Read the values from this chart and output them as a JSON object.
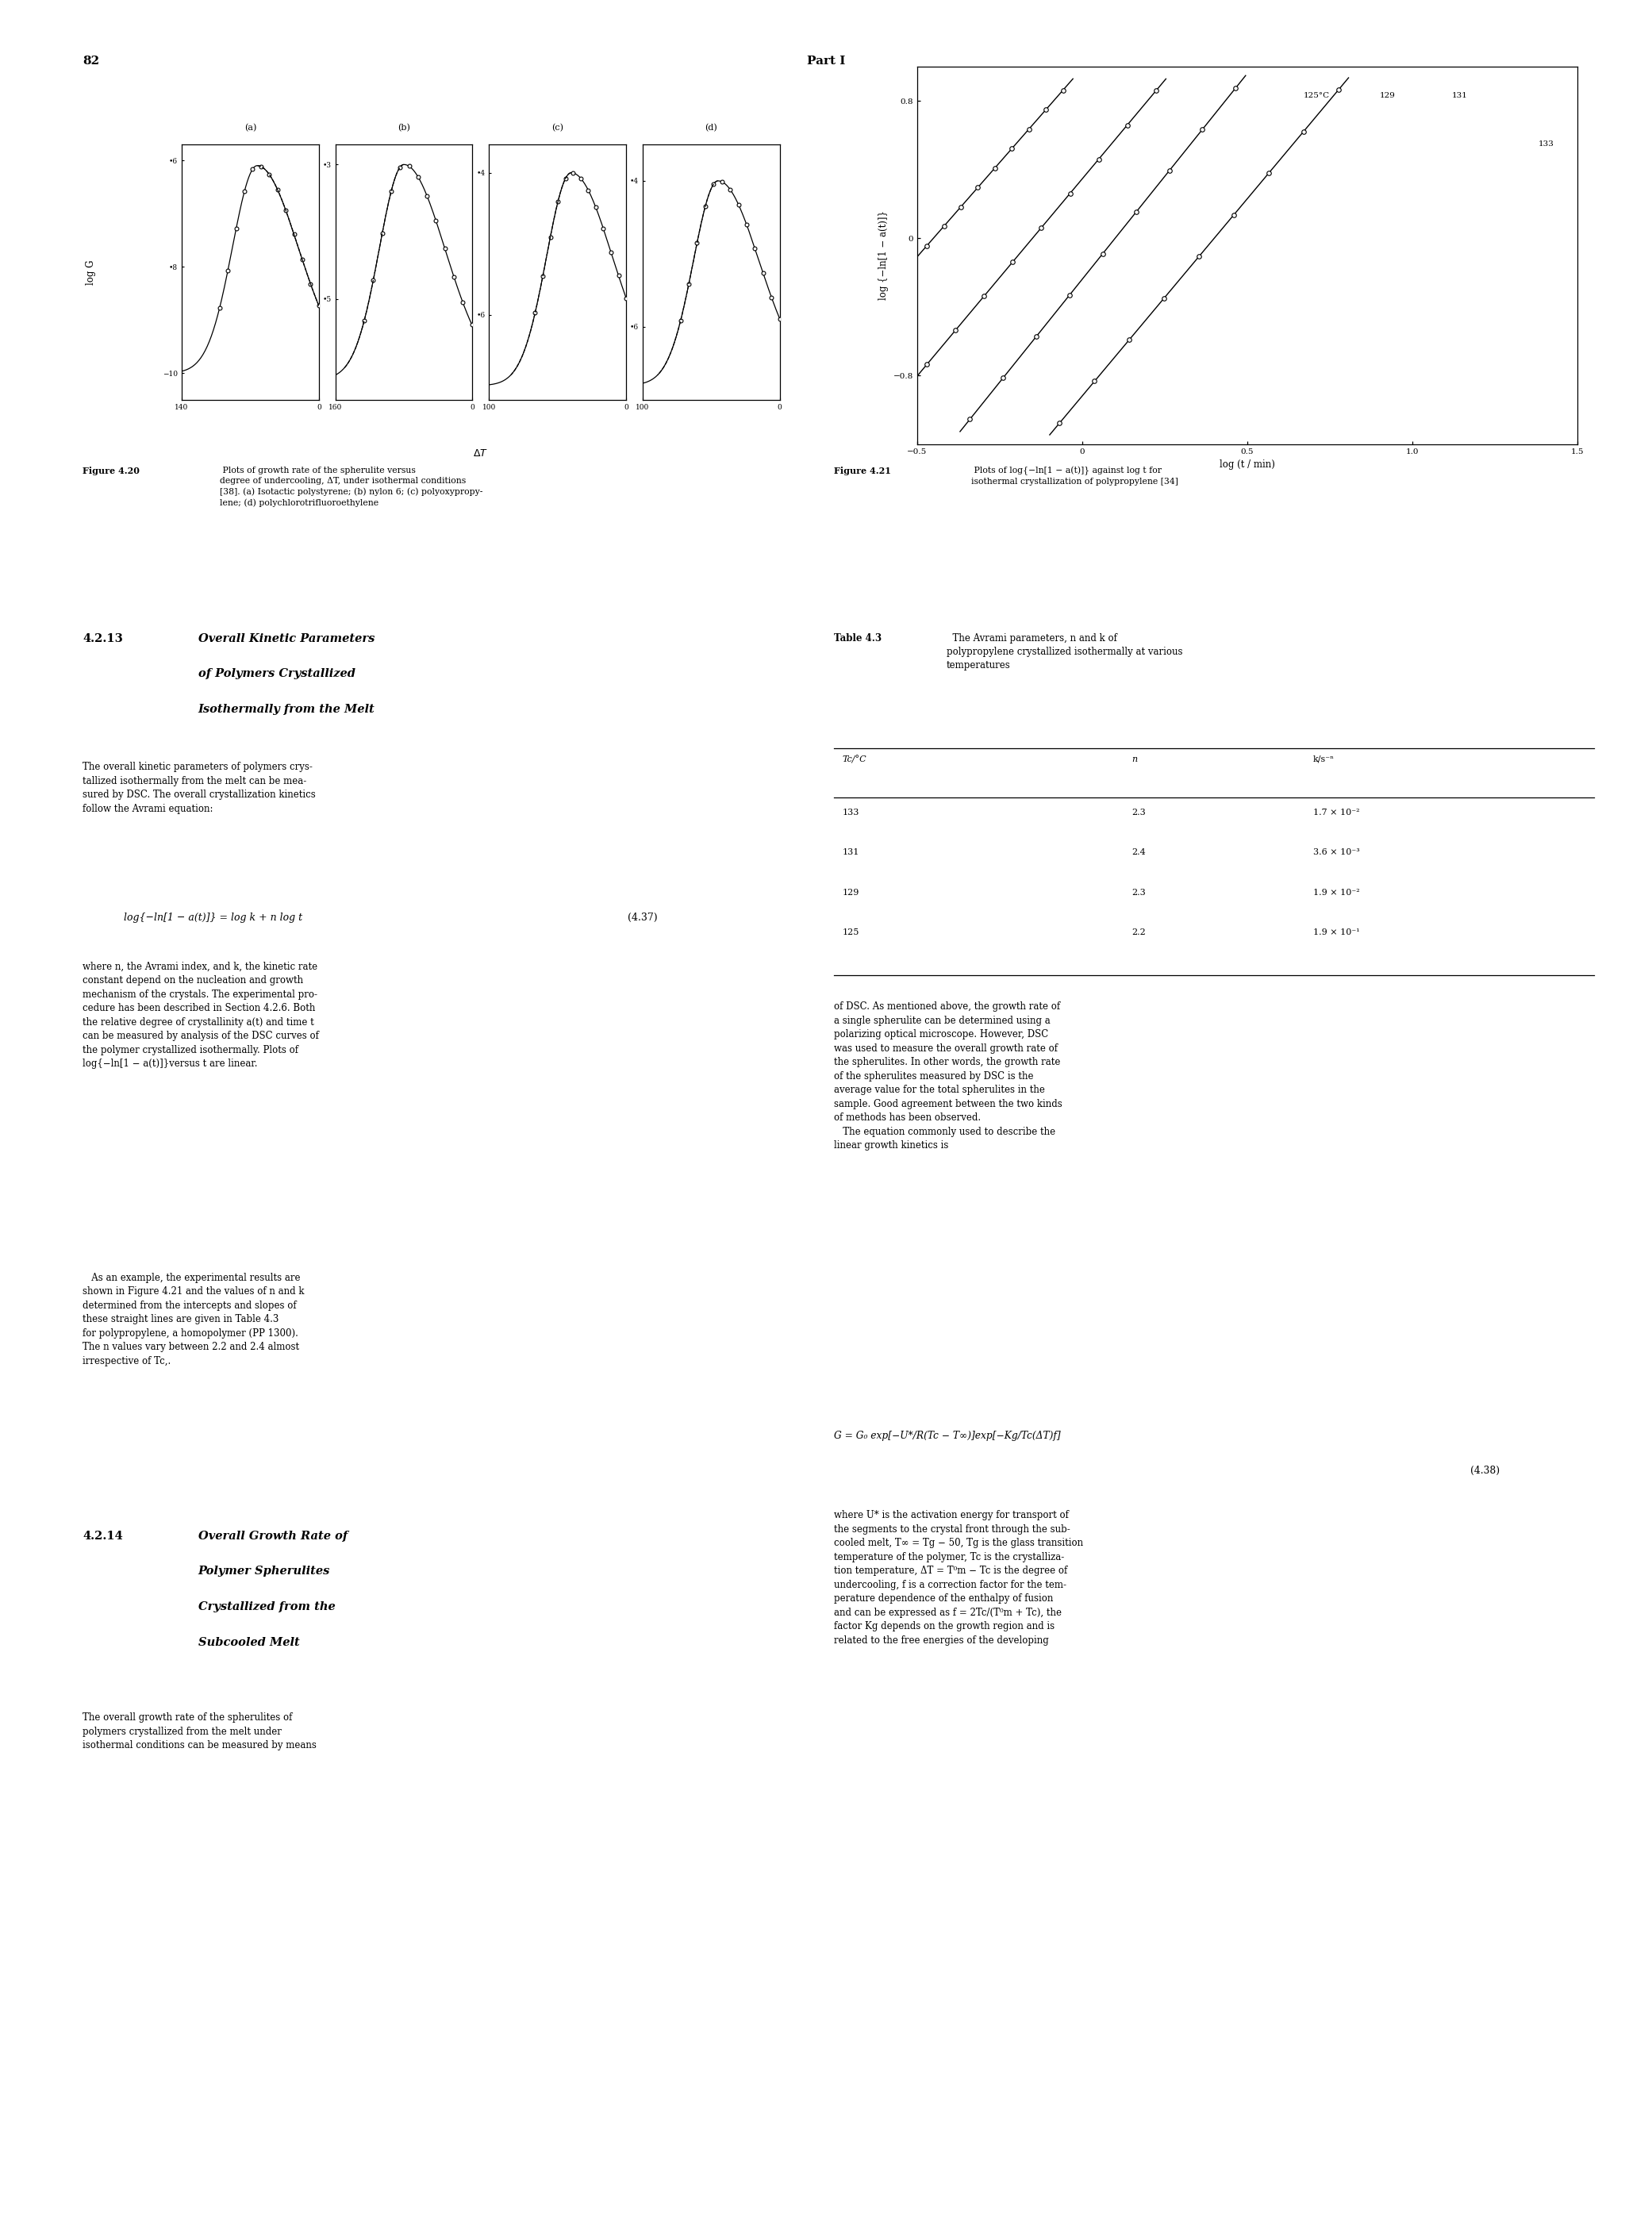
{
  "page_number": "82",
  "header_title": "Part I",
  "background_color": "#ffffff",
  "fig420_caption_bold": "Figure 4.20",
  "fig420_caption_text": "  Plots of growth rate of the spherulite versus\ndegree of undercooling, ΔT, under isothermal conditions\n[38]. (a) Isotactic polystyrene; (b) nylon 6; (c) polyoxypropy-\nylene; (d) polychlorotrifluoroethylene",
  "fig421_caption_bold": "Figure 4.21",
  "fig421_caption_text": "  Plots of log{−ln[1 − a(t)]} against log t for\nisothermal crystallization of polypropylene [34]",
  "subplot_a_ytick_labels": [
    "•6",
    "•8",
    "−10"
  ],
  "subplot_a_ytick_vals": [
    -6,
    -8,
    -10
  ],
  "subplot_a_xtick_labels": [
    "140",
    "0"
  ],
  "subplot_a_xtick_vals": [
    140,
    0
  ],
  "subplot_a_xlim": [
    140,
    0
  ],
  "subplot_a_ylim": [
    -10.5,
    -5.7
  ],
  "subplot_b_ytick_labels": [
    "•3",
    "•5"
  ],
  "subplot_b_ytick_vals": [
    -3,
    -5
  ],
  "subplot_b_xtick_labels": [
    "160",
    "0"
  ],
  "subplot_b_xtick_vals": [
    160,
    0
  ],
  "subplot_b_xlim": [
    160,
    0
  ],
  "subplot_b_ylim": [
    -6.5,
    -2.7
  ],
  "subplot_c_ytick_labels": [
    "•4",
    "•6"
  ],
  "subplot_c_ytick_vals": [
    -4,
    -6
  ],
  "subplot_c_xtick_labels": [
    "100",
    "0"
  ],
  "subplot_c_xtick_vals": [
    100,
    0
  ],
  "subplot_c_xlim": [
    100,
    0
  ],
  "subplot_c_ylim": [
    -7.2,
    -3.6
  ],
  "subplot_d_ytick_labels": [
    "•4",
    "•6"
  ],
  "subplot_d_ytick_vals": [
    -4,
    -6
  ],
  "subplot_d_xtick_labels": [
    "100",
    "0"
  ],
  "subplot_d_xtick_vals": [
    100,
    0
  ],
  "subplot_d_xlim": [
    100,
    0
  ],
  "subplot_d_ylim": [
    -7.0,
    -3.5
  ],
  "fig421_xlim": [
    -0.5,
    1.5
  ],
  "fig421_ylim": [
    -1.2,
    1.0
  ],
  "fig421_ytick_labels": [
    "−0.8",
    "0",
    "0.8"
  ],
  "fig421_ytick_vals": [
    -0.8,
    0,
    0.8
  ],
  "fig421_xtick_labels": [
    "−0.5",
    "0",
    "0.5",
    "1.0",
    "1.5"
  ],
  "fig421_xtick_vals": [
    -0.5,
    0,
    0.5,
    1.0,
    1.5
  ],
  "fig421_temps": [
    "125°C",
    "129",
    "131",
    "133"
  ],
  "fig421_temp_positions": [
    {
      "x_label": 0.62,
      "y_label": 0.82
    },
    {
      "x_label": 0.85,
      "y_label": 0.82
    },
    {
      "x_label": 1.08,
      "y_label": 0.82
    },
    {
      "x_label": 1.35,
      "y_label": 0.55
    }
  ],
  "table43_title": "Table 4.3",
  "table43_subtitle": "  The Avrami parameters, n and k of\npolypropylene crystallized isothermally at various\ntemperatures",
  "table43_col1": [
    "T_c/°C",
    "133",
    "131",
    "129",
    "125"
  ],
  "table43_col2": [
    "n",
    "2.3",
    "2.4",
    "2.3",
    "2.2"
  ],
  "table43_col3": [
    "k/s⁻ⁿ",
    "1.7 × 10⁻²",
    "3.6 × 10⁻³",
    "1.9 × 10⁻²",
    "1.9 × 10⁻¹"
  ]
}
